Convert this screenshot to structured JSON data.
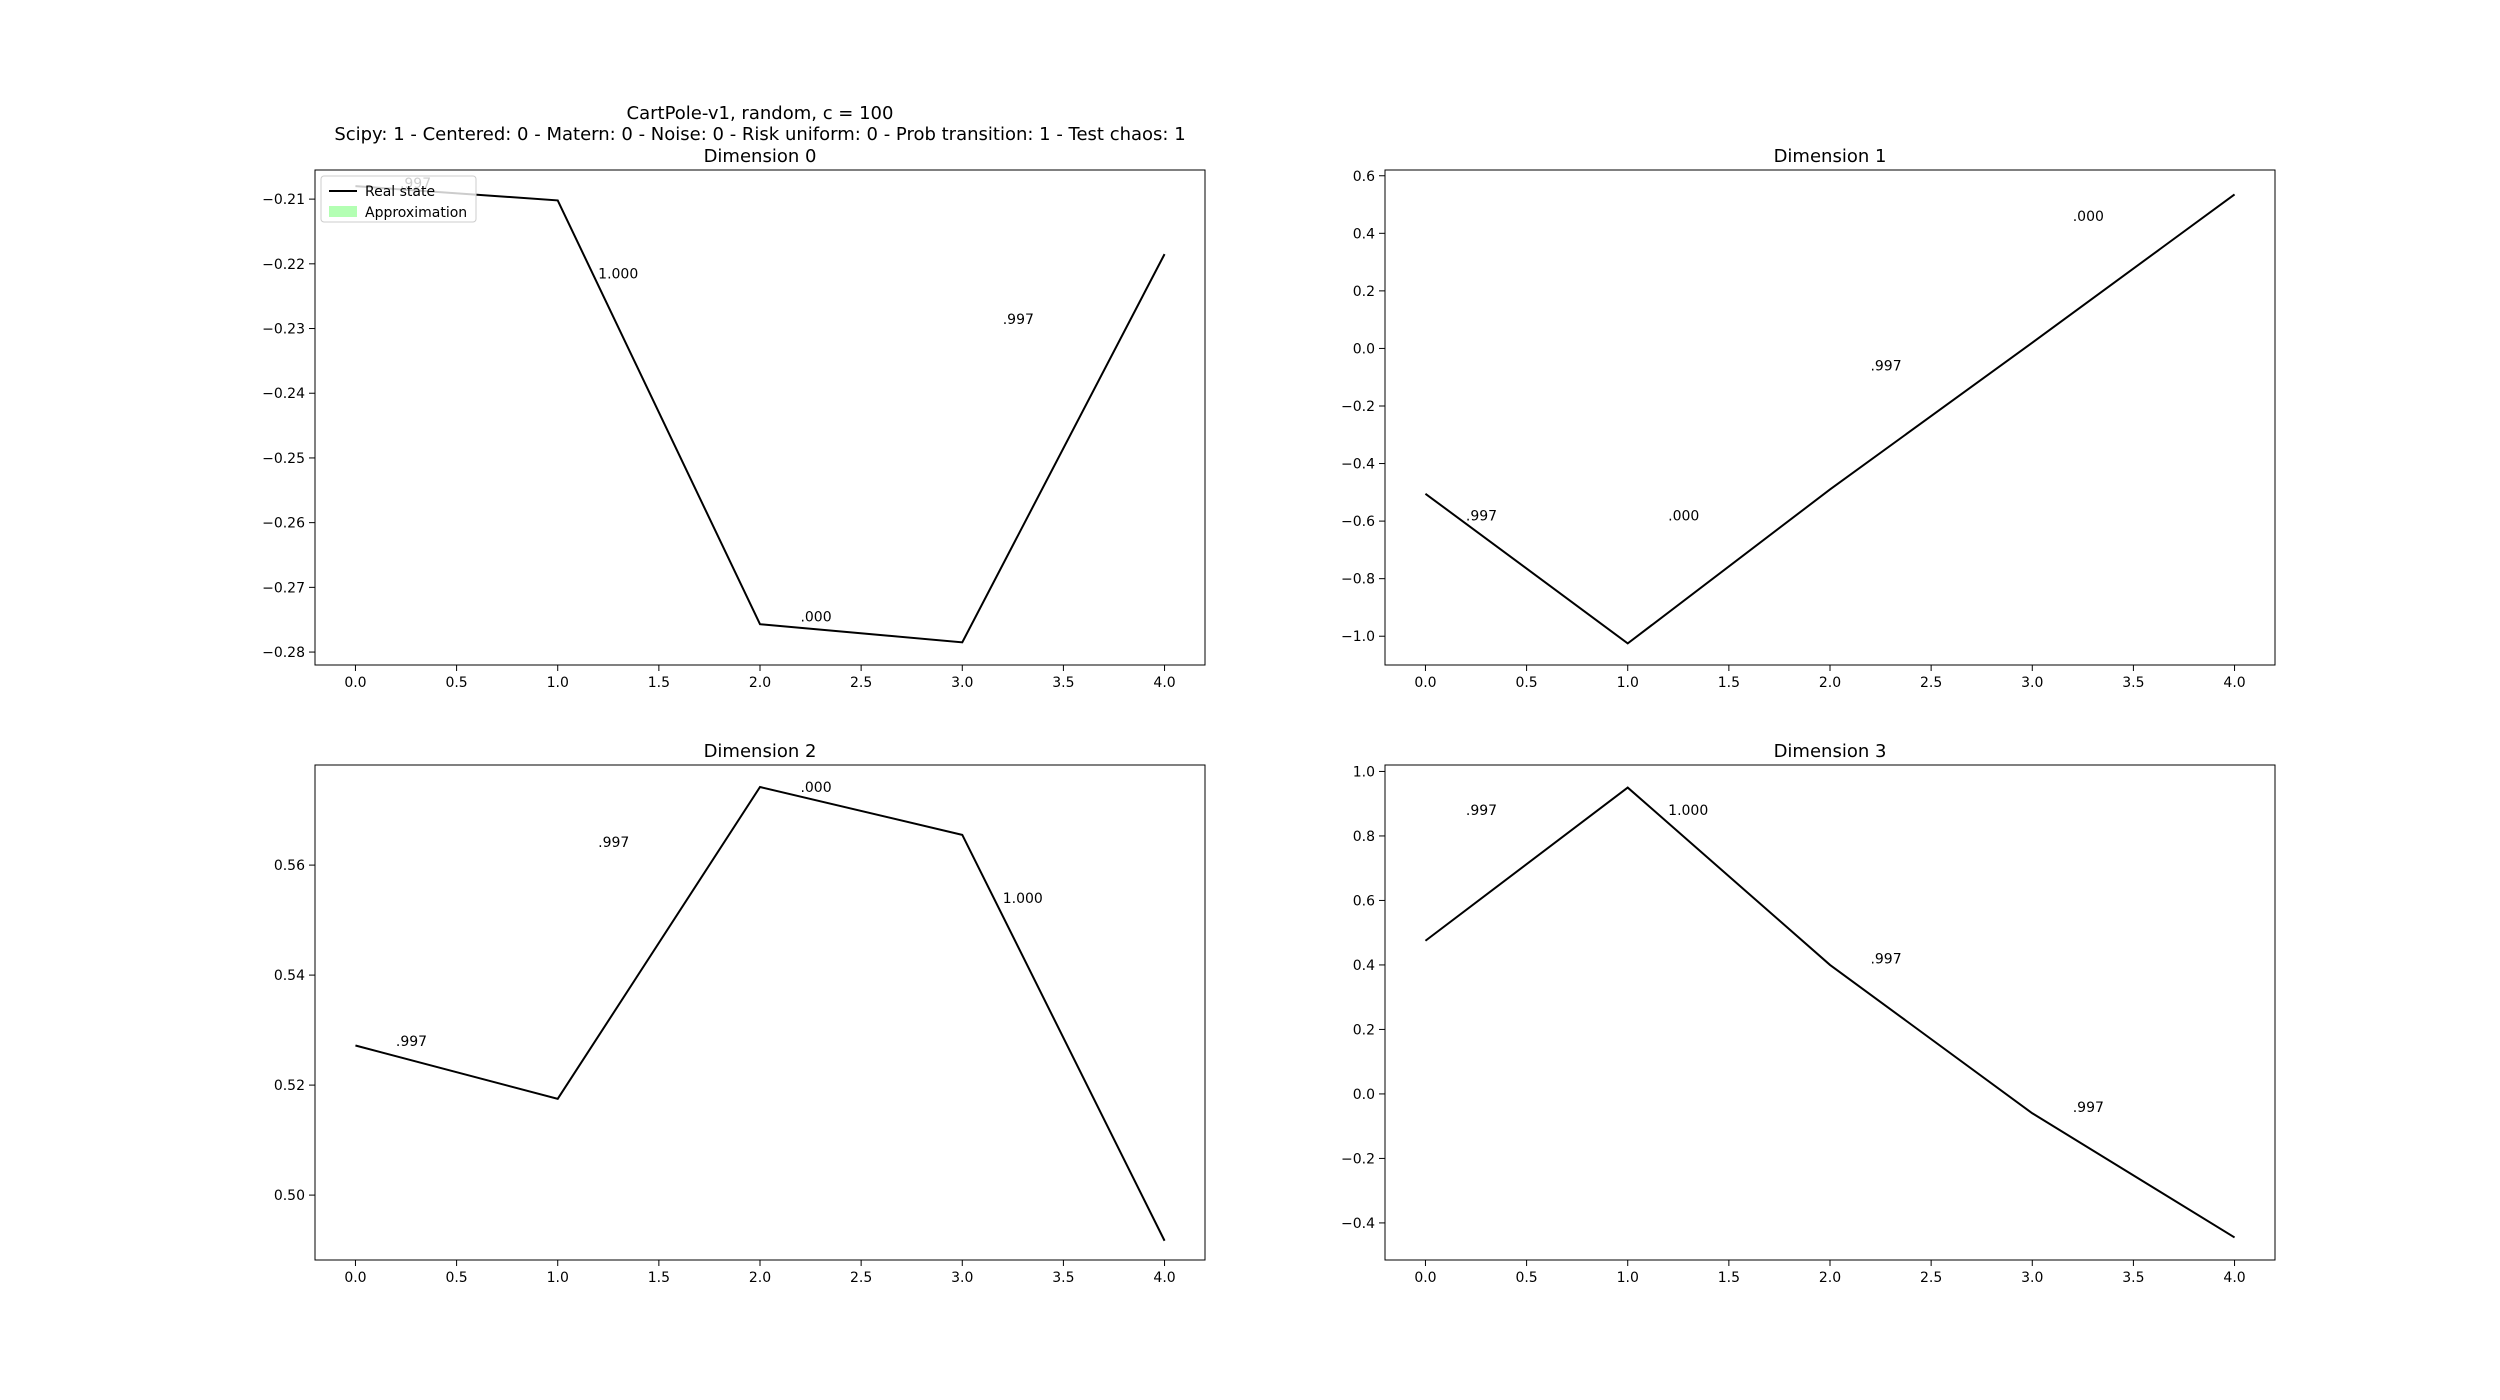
{
  "figure": {
    "title_lines": [
      "CartPole-v1, random, c = 100",
      "Scipy: 1 - Centered: 0 - Matern: 0 - Noise: 0 - Risk uniform: 0 - Prob transition: 1 - Test chaos: 1"
    ],
    "line_color": "#000000",
    "approximation_color": "#b3ffb3"
  },
  "legend": {
    "placement": "upper-left",
    "entries": [
      {
        "label": "Real state",
        "kind": "line",
        "color": "#000000"
      },
      {
        "label": "Approximation",
        "kind": "patch",
        "color": "#b3ffb3"
      }
    ]
  },
  "chart_data": [
    {
      "type": "line",
      "title": "Dimension 0",
      "x": [
        0,
        1,
        2,
        3,
        4
      ],
      "series": [
        {
          "name": "Real state",
          "values": [
            -0.208,
            -0.2102,
            -0.2757,
            -0.2785,
            -0.2185
          ]
        }
      ],
      "xlim": [
        -0.2,
        4.2
      ],
      "ylim": [
        -0.282,
        -0.2055
      ],
      "xticks": [
        0.0,
        0.5,
        1.0,
        1.5,
        2.0,
        2.5,
        3.0,
        3.5,
        4.0
      ],
      "yticks": [
        -0.21,
        -0.22,
        -0.23,
        -0.24,
        -0.25,
        -0.26,
        -0.27,
        -0.28
      ],
      "xtick_labels": [
        "0.0",
        "0.5",
        "1.0",
        "1.5",
        "2.0",
        "2.5",
        "3.0",
        "3.5",
        "4.0"
      ],
      "ytick_labels": [
        "−0.21",
        "−0.22",
        "−0.23",
        "−0.24",
        "−0.25",
        "−0.26",
        "−0.27",
        "−0.28"
      ],
      "annotations": [
        {
          "text": ".997",
          "x": 0.22,
          "y": -0.2075
        },
        {
          "text": "1.000",
          "x": 1.2,
          "y": -0.2215
        },
        {
          "text": ".000",
          "x": 2.2,
          "y": -0.2745
        },
        {
          "text": ".997",
          "x": 3.2,
          "y": -0.2285
        }
      ],
      "legend": true
    },
    {
      "type": "line",
      "title": "Dimension 1",
      "x": [
        0,
        1,
        2,
        3,
        4
      ],
      "series": [
        {
          "name": "Real state",
          "values": [
            -0.505,
            -1.025,
            -0.49,
            0.02,
            0.535
          ]
        }
      ],
      "xlim": [
        -0.2,
        4.2
      ],
      "ylim": [
        -1.1,
        0.62
      ],
      "xticks": [
        0.0,
        0.5,
        1.0,
        1.5,
        2.0,
        2.5,
        3.0,
        3.5,
        4.0
      ],
      "yticks": [
        0.6,
        0.4,
        0.2,
        0.0,
        -0.2,
        -0.4,
        -0.6,
        -0.8,
        -1.0
      ],
      "xtick_labels": [
        "0.0",
        "0.5",
        "1.0",
        "1.5",
        "2.0",
        "2.5",
        "3.0",
        "3.5",
        "4.0"
      ],
      "ytick_labels": [
        "0.6",
        "0.4",
        "0.2",
        "0.0",
        "−0.2",
        "−0.4",
        "−0.6",
        "−0.8",
        "−1.0"
      ],
      "annotations": [
        {
          "text": ".997",
          "x": 0.2,
          "y": -0.58
        },
        {
          "text": ".000",
          "x": 1.2,
          "y": -0.58
        },
        {
          "text": ".997",
          "x": 2.2,
          "y": -0.06
        },
        {
          "text": ".000",
          "x": 3.2,
          "y": 0.46
        }
      ],
      "legend": false
    },
    {
      "type": "line",
      "title": "Dimension 2",
      "x": [
        0,
        1,
        2,
        3,
        4
      ],
      "series": [
        {
          "name": "Real state",
          "values": [
            0.5272,
            0.5175,
            0.5742,
            0.5655,
            0.4917
          ]
        }
      ],
      "xlim": [
        -0.2,
        4.2
      ],
      "ylim": [
        0.4882,
        0.5782
      ],
      "xticks": [
        0.0,
        0.5,
        1.0,
        1.5,
        2.0,
        2.5,
        3.0,
        3.5,
        4.0
      ],
      "yticks": [
        0.56,
        0.54,
        0.52,
        0.5
      ],
      "xtick_labels": [
        "0.0",
        "0.5",
        "1.0",
        "1.5",
        "2.0",
        "2.5",
        "3.0",
        "3.5",
        "4.0"
      ],
      "ytick_labels": [
        "0.56",
        "0.54",
        "0.52",
        "0.50"
      ],
      "annotations": [
        {
          "text": ".997",
          "x": 0.2,
          "y": 0.528
        },
        {
          "text": ".997",
          "x": 1.2,
          "y": 0.5642
        },
        {
          "text": ".000",
          "x": 2.2,
          "y": 0.5742
        },
        {
          "text": "1.000",
          "x": 3.2,
          "y": 0.554
        }
      ],
      "legend": false
    },
    {
      "type": "line",
      "title": "Dimension 3",
      "x": [
        0,
        1,
        2,
        3,
        4
      ],
      "series": [
        {
          "name": "Real state",
          "values": [
            0.475,
            0.95,
            0.4,
            -0.06,
            -0.445
          ]
        }
      ],
      "xlim": [
        -0.2,
        4.2
      ],
      "ylim": [
        -0.515,
        1.02
      ],
      "xticks": [
        0.0,
        0.5,
        1.0,
        1.5,
        2.0,
        2.5,
        3.0,
        3.5,
        4.0
      ],
      "yticks": [
        1.0,
        0.8,
        0.6,
        0.4,
        0.2,
        0.0,
        -0.2,
        -0.4
      ],
      "xtick_labels": [
        "0.0",
        "0.5",
        "1.0",
        "1.5",
        "2.0",
        "2.5",
        "3.0",
        "3.5",
        "4.0"
      ],
      "ytick_labels": [
        "1.0",
        "0.8",
        "0.6",
        "0.4",
        "0.2",
        "0.0",
        "−0.2",
        "−0.4"
      ],
      "annotations": [
        {
          "text": ".997",
          "x": 0.2,
          "y": 0.88
        },
        {
          "text": "1.000",
          "x": 1.2,
          "y": 0.88
        },
        {
          "text": ".997",
          "x": 2.2,
          "y": 0.42
        },
        {
          "text": ".997",
          "x": 3.2,
          "y": -0.04
        }
      ],
      "legend": false
    }
  ]
}
